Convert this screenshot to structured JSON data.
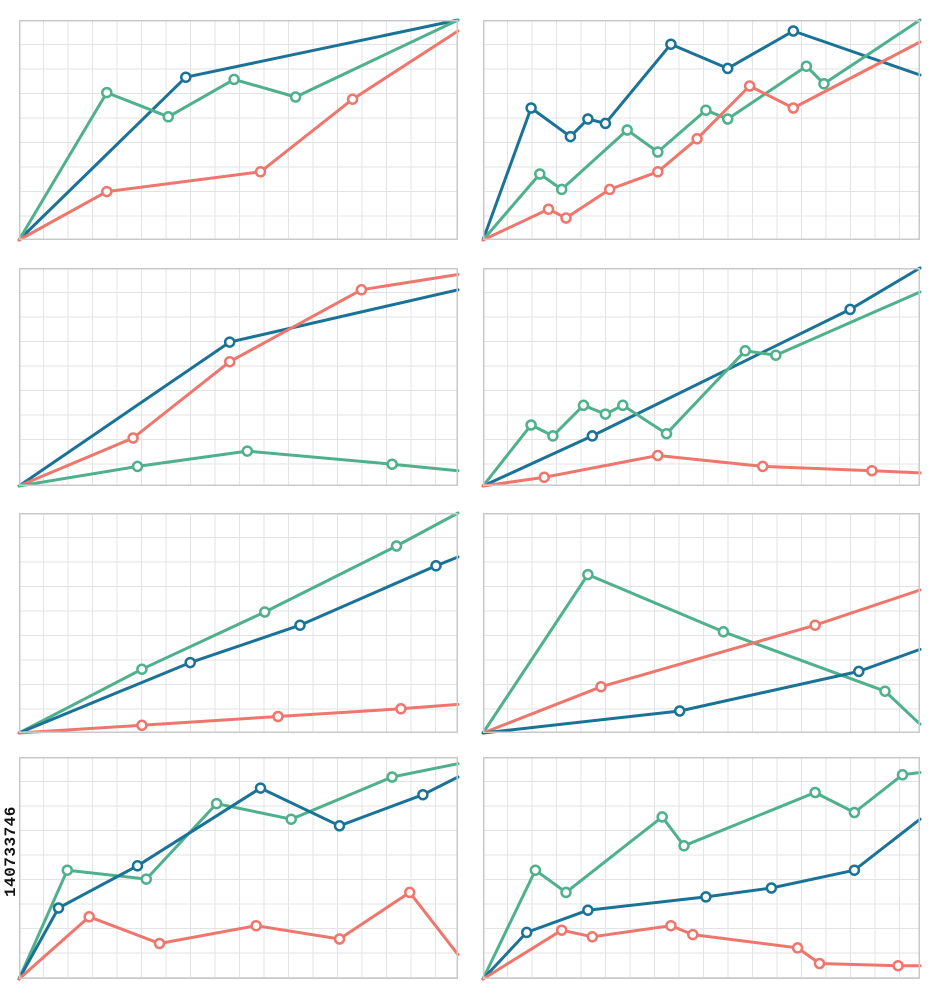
{
  "colors": {
    "series_blue": "#1a7396",
    "series_green": "#4fb08c",
    "series_red": "#ee766c",
    "frame": "#c9c9c9",
    "grid": "#e3e3e3"
  },
  "stock_id": "140733746",
  "chart_data": [
    {
      "type": "line",
      "grid": true,
      "xlim": [
        0,
        10
      ],
      "ylim": [
        0,
        10
      ],
      "series": [
        {
          "color_key": "series_blue",
          "x": [
            0,
            3.8,
            10
          ],
          "y": [
            0,
            7.4,
            10
          ],
          "markers": [
            false,
            true,
            false
          ]
        },
        {
          "color_key": "series_green",
          "x": [
            0,
            2,
            3.4,
            4.9,
            6.3,
            10
          ],
          "y": [
            0,
            6.7,
            5.6,
            7.3,
            6.5,
            10
          ],
          "markers": [
            false,
            true,
            true,
            true,
            true,
            false
          ]
        },
        {
          "color_key": "series_red",
          "x": [
            0,
            2,
            5.5,
            7.6,
            10
          ],
          "y": [
            0,
            2.2,
            3.1,
            6.4,
            9.5
          ],
          "markers": [
            false,
            true,
            true,
            true,
            false
          ]
        }
      ]
    },
    {
      "type": "line",
      "grid": true,
      "xlim": [
        0,
        10
      ],
      "ylim": [
        0,
        10
      ],
      "series": [
        {
          "color_key": "series_blue",
          "x": [
            0,
            1.1,
            2,
            2.4,
            2.8,
            4.3,
            5.6,
            7.1,
            10
          ],
          "y": [
            0,
            6,
            4.7,
            5.5,
            5.3,
            8.9,
            7.8,
            9.5,
            7.5
          ],
          "markers": [
            false,
            true,
            true,
            true,
            true,
            true,
            true,
            true,
            false
          ]
        },
        {
          "color_key": "series_green",
          "x": [
            0,
            1.3,
            1.8,
            3.3,
            4,
            5.1,
            5.6,
            7.4,
            7.8,
            10
          ],
          "y": [
            0,
            3,
            2.3,
            5,
            4,
            5.9,
            5.5,
            7.9,
            7.1,
            10
          ],
          "markers": [
            false,
            true,
            true,
            true,
            true,
            true,
            true,
            true,
            true,
            false
          ]
        },
        {
          "color_key": "series_red",
          "x": [
            0,
            1.5,
            1.9,
            2.9,
            4,
            4.9,
            6.1,
            7.1,
            10
          ],
          "y": [
            0,
            1.4,
            1,
            2.3,
            3.1,
            4.6,
            7,
            6,
            9
          ]
        }
      ]
    },
    {
      "type": "line",
      "grid": true,
      "xlim": [
        0,
        10
      ],
      "ylim": [
        0,
        10
      ],
      "series": [
        {
          "color_key": "series_blue",
          "x": [
            0,
            4.8,
            10
          ],
          "y": [
            0,
            6.6,
            9
          ],
          "markers": [
            false,
            true,
            false
          ]
        },
        {
          "color_key": "series_red",
          "x": [
            0,
            2.6,
            4.8,
            7.8,
            10
          ],
          "y": [
            0,
            2.2,
            5.7,
            9,
            9.7
          ],
          "markers": [
            false,
            true,
            true,
            true,
            false
          ]
        },
        {
          "color_key": "series_green",
          "x": [
            0,
            2.7,
            5.2,
            8.5,
            10
          ],
          "y": [
            0,
            0.9,
            1.6,
            1,
            0.7
          ],
          "markers": [
            false,
            true,
            true,
            true,
            false
          ]
        }
      ]
    },
    {
      "type": "line",
      "grid": true,
      "xlim": [
        0,
        10
      ],
      "ylim": [
        0,
        10
      ],
      "series": [
        {
          "color_key": "series_blue",
          "x": [
            0,
            2.5,
            8.4,
            10
          ],
          "y": [
            0,
            2.3,
            8.1,
            10
          ],
          "markers": [
            false,
            true,
            true,
            false
          ]
        },
        {
          "color_key": "series_green",
          "x": [
            0,
            1.1,
            1.6,
            2.3,
            2.8,
            3.2,
            4.2,
            6,
            6.7,
            10
          ],
          "y": [
            0,
            2.8,
            2.3,
            3.7,
            3.3,
            3.7,
            2.4,
            6.2,
            6,
            8.9
          ],
          "markers": [
            false,
            true,
            true,
            true,
            true,
            true,
            true,
            true,
            true,
            false
          ]
        },
        {
          "color_key": "series_red",
          "x": [
            0,
            1.4,
            4,
            6.4,
            8.9,
            10
          ],
          "y": [
            0,
            0.4,
            1.4,
            0.9,
            0.7,
            0.6
          ],
          "markers": [
            false,
            true,
            true,
            true,
            true,
            false
          ]
        }
      ]
    },
    {
      "type": "line",
      "grid": true,
      "xlim": [
        0,
        10
      ],
      "ylim": [
        0,
        10
      ],
      "series": [
        {
          "color_key": "series_green",
          "x": [
            0,
            2.8,
            5.6,
            8.6,
            10
          ],
          "y": [
            0,
            2.9,
            5.5,
            8.5,
            10
          ],
          "markers": [
            false,
            true,
            true,
            true,
            false
          ]
        },
        {
          "color_key": "series_blue",
          "x": [
            0,
            3.9,
            6.4,
            9.5,
            10
          ],
          "y": [
            0,
            3.2,
            4.9,
            7.6,
            8
          ],
          "markers": [
            false,
            true,
            true,
            true,
            false
          ]
        },
        {
          "color_key": "series_red",
          "x": [
            0,
            2.8,
            5.9,
            8.7,
            10
          ],
          "y": [
            0,
            0.35,
            0.75,
            1.1,
            1.3
          ],
          "markers": [
            false,
            true,
            true,
            true,
            false
          ]
        }
      ]
    },
    {
      "type": "line",
      "grid": true,
      "xlim": [
        0,
        10
      ],
      "ylim": [
        0,
        10
      ],
      "series": [
        {
          "color_key": "series_green",
          "x": [
            0,
            2.4,
            5.5,
            9.2,
            10
          ],
          "y": [
            0,
            7.2,
            4.6,
            1.9,
            0.4
          ],
          "markers": [
            false,
            true,
            true,
            true,
            false
          ]
        },
        {
          "color_key": "series_red",
          "x": [
            0,
            2.7,
            7.6,
            10
          ],
          "y": [
            0,
            2.1,
            4.9,
            6.5
          ],
          "markers": [
            false,
            true,
            true,
            false
          ]
        },
        {
          "color_key": "series_blue",
          "x": [
            0,
            4.5,
            8.6,
            10
          ],
          "y": [
            0,
            1,
            2.8,
            3.8
          ],
          "markers": [
            false,
            true,
            true,
            false
          ]
        }
      ]
    },
    {
      "type": "line",
      "grid": true,
      "xlim": [
        0,
        10
      ],
      "ylim": [
        0,
        10
      ],
      "series": [
        {
          "color_key": "series_green",
          "x": [
            0,
            1.1,
            2.9,
            4.5,
            6.2,
            8.5,
            10
          ],
          "y": [
            0,
            4.9,
            4.5,
            7.9,
            7.2,
            9.1,
            9.7
          ],
          "markers": [
            false,
            true,
            true,
            true,
            true,
            true,
            false
          ]
        },
        {
          "color_key": "series_blue",
          "x": [
            0,
            0.9,
            2.7,
            5.5,
            7.3,
            9.2,
            10
          ],
          "y": [
            0,
            3.2,
            5.1,
            8.6,
            6.9,
            8.3,
            9.1
          ],
          "markers": [
            false,
            true,
            true,
            true,
            true,
            true,
            false
          ]
        },
        {
          "color_key": "series_red",
          "x": [
            0,
            1.6,
            3.2,
            5.4,
            7.3,
            8.9,
            10
          ],
          "y": [
            0,
            2.8,
            1.6,
            2.4,
            1.8,
            3.9,
            1.1
          ],
          "markers": [
            false,
            true,
            true,
            true,
            true,
            true,
            false
          ]
        }
      ]
    },
    {
      "type": "line",
      "grid": true,
      "xlim": [
        0,
        10
      ],
      "ylim": [
        0,
        10
      ],
      "series": [
        {
          "color_key": "series_green",
          "x": [
            0,
            1.2,
            1.9,
            4.1,
            4.6,
            7.6,
            8.5,
            9.6,
            10
          ],
          "y": [
            0,
            4.9,
            3.9,
            7.3,
            6,
            8.4,
            7.5,
            9.2,
            9.3
          ],
          "markers": [
            false,
            true,
            true,
            true,
            true,
            true,
            true,
            true,
            false
          ]
        },
        {
          "color_key": "series_blue",
          "x": [
            0,
            1,
            2.4,
            5.1,
            6.6,
            8.5,
            10
          ],
          "y": [
            0,
            2.1,
            3.1,
            3.7,
            4.1,
            4.9,
            7.2
          ],
          "markers": [
            false,
            true,
            true,
            true,
            true,
            true,
            false
          ]
        },
        {
          "color_key": "series_red",
          "x": [
            0,
            1.8,
            2.5,
            4.3,
            4.8,
            7.2,
            7.7,
            9.5,
            10
          ],
          "y": [
            0,
            2.2,
            1.9,
            2.4,
            2,
            1.4,
            0.7,
            0.6,
            0.6
          ]
        }
      ]
    }
  ]
}
